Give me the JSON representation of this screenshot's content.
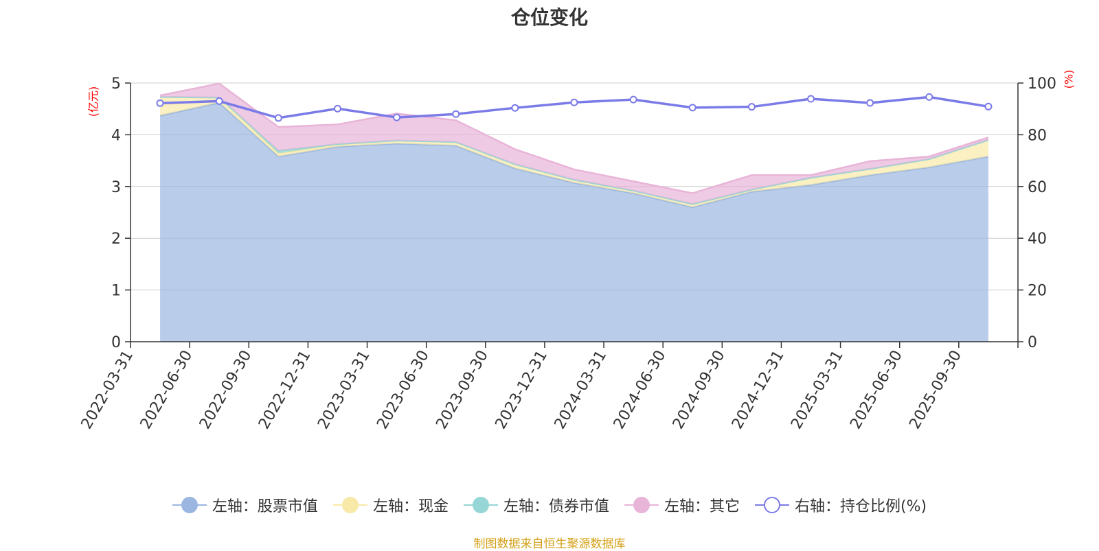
{
  "title": "仓位变化",
  "source_note": "制图数据来自恒生聚源数据库",
  "chart_data": {
    "type": "area",
    "title": "仓位变化",
    "y_left_unit": "(亿元)",
    "y_right_unit": "(%)",
    "y_left_ticks": [
      "0",
      "1",
      "2",
      "3",
      "4",
      "5"
    ],
    "y_right_ticks": [
      "0",
      "20",
      "40",
      "60",
      "80",
      "100"
    ],
    "ylim_left": [
      0,
      5
    ],
    "ylim_right": [
      0,
      100
    ],
    "grid": true,
    "legend_position": "bottom",
    "categories": [
      "2022-03-31",
      "2022-06-30",
      "2022-09-30",
      "2022-12-31",
      "2023-03-31",
      "2023-06-30",
      "2023-09-30",
      "2023-12-31",
      "2024-03-31",
      "2024-06-30",
      "2024-09-30",
      "2024-12-31",
      "2025-03-31",
      "2025-06-30",
      "2025-09-30"
    ],
    "series": [
      {
        "name": "左轴：股票市值",
        "axis": "left",
        "kind": "stacked-area",
        "color": "#9bb6e0",
        "values": [
          4.37,
          4.62,
          3.58,
          3.77,
          3.83,
          3.79,
          3.35,
          3.07,
          2.87,
          2.6,
          2.9,
          3.03,
          3.22,
          3.37,
          3.58
        ]
      },
      {
        "name": "左轴：现金",
        "axis": "left",
        "kind": "stacked-area",
        "color": "#f8e9a8",
        "values": [
          0.36,
          0.1,
          0.06,
          0.04,
          0.06,
          0.07,
          0.08,
          0.06,
          0.05,
          0.06,
          0.04,
          0.14,
          0.12,
          0.16,
          0.32
        ]
      },
      {
        "name": "左轴：债券市值",
        "axis": "left",
        "kind": "stacked-area",
        "color": "#96d6d6",
        "values": [
          0.0,
          0.0,
          0.05,
          0.01,
          0.0,
          0.0,
          0.0,
          0.0,
          0.0,
          0.0,
          0.0,
          0.0,
          0.0,
          0.0,
          0.0
        ]
      },
      {
        "name": "左轴：其它",
        "axis": "left",
        "kind": "stacked-area",
        "color": "#e8b4d8",
        "values": [
          0.03,
          0.27,
          0.46,
          0.38,
          0.52,
          0.42,
          0.29,
          0.2,
          0.18,
          0.21,
          0.28,
          0.05,
          0.15,
          0.05,
          0.05
        ]
      },
      {
        "name": "右轴：持仓比例(%)",
        "axis": "right",
        "kind": "line",
        "color": "#7b7be8",
        "values": [
          92.2,
          93.0,
          86.5,
          90.1,
          86.7,
          88.0,
          90.4,
          92.5,
          93.6,
          90.5,
          90.8,
          93.9,
          92.3,
          94.6,
          90.9
        ]
      }
    ]
  }
}
